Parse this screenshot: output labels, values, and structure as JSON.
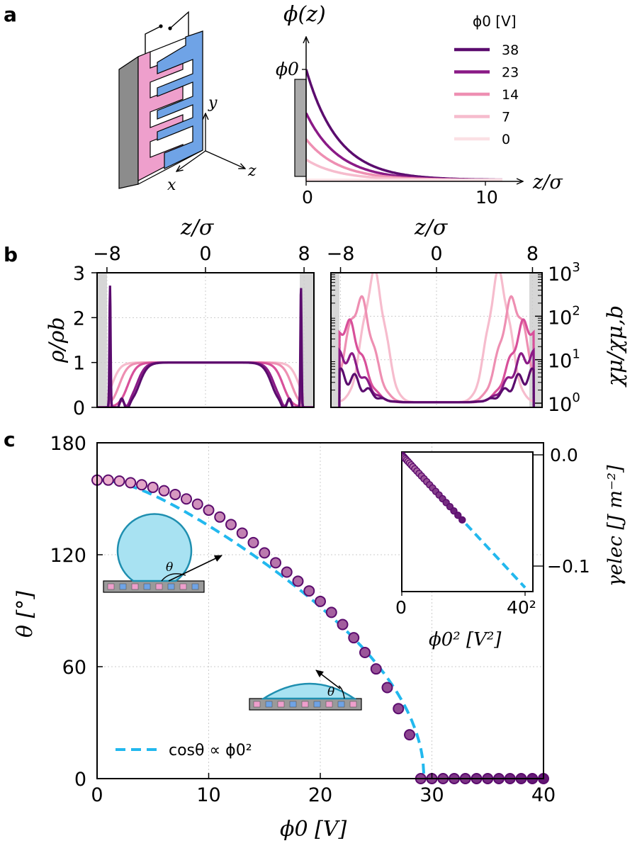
{
  "panel_labels": {
    "a": "a",
    "b": "b",
    "c": "c"
  },
  "colors": {
    "c38": "#5b0c6e",
    "c23": "#8a1a86",
    "c14": "#ee8fb2",
    "c7": "#f6bccd",
    "c0": "#fbe0e4",
    "fit": "#22b8ee",
    "wall": "#999999",
    "electrode_pink": "#ee9fcc",
    "electrode_blue": "#6fa3e6",
    "droplet": "#a8e2f2",
    "droplet_edge": "#1f8fb0"
  },
  "panel_a": {
    "axes_labels": {
      "x": "x",
      "y": "y",
      "z": "z"
    },
    "chart_data": {
      "type": "line",
      "title": "",
      "ylabel": "ϕ(z)",
      "xlabel": "z/σ",
      "yticklabel": "ϕ0",
      "xticks": [
        0,
        10
      ],
      "xlim": [
        -0.8,
        11.2
      ],
      "legend_title": "ϕ0 [V]",
      "legend_position": "top-right",
      "series": [
        {
          "name": "38",
          "phi0": 38,
          "color": "#5b0c6e"
        },
        {
          "name": "23",
          "phi0": 23,
          "color": "#8a1a86"
        },
        {
          "name": "14",
          "phi0": 14,
          "color": "#ee8fb2"
        },
        {
          "name": "7",
          "phi0": 7,
          "color": "#f6bccd"
        },
        {
          "name": "0",
          "phi0": 0,
          "color": "#fbe0e4"
        }
      ],
      "decay_length": 1.8
    }
  },
  "panel_b_left": {
    "chart_data": {
      "type": "line",
      "xlabel": "z/σ",
      "ylabel": "ρ/ρb",
      "xticks": [
        -8,
        0,
        8
      ],
      "yticks": [
        0,
        1,
        2,
        3
      ],
      "xlim": [
        -8.8,
        8.8
      ],
      "ylim": [
        0,
        3
      ],
      "series": [
        {
          "name": "38",
          "width": 5.4,
          "peak": 2.7,
          "color": "#5b0c6e"
        },
        {
          "name": "23",
          "width": 5.6,
          "peak": 0.9,
          "color": "#8a1a86"
        },
        {
          "name": "14",
          "width": 6.3,
          "peak": 0.0,
          "color": "#d8509a"
        },
        {
          "name": "7",
          "width": 7.0,
          "peak": 0.0,
          "color": "#ee8fb2"
        },
        {
          "name": "0",
          "width": 7.6,
          "peak": 0.0,
          "color": "#f6bccd"
        }
      ]
    }
  },
  "panel_b_right": {
    "chart_data": {
      "type": "line",
      "xlabel": "z/σ",
      "ylabel": "χμ/χμ,b",
      "xticks": [
        -8,
        0,
        8
      ],
      "yticklabels": [
        "10^0",
        "10^1",
        "10^2",
        "10^3"
      ],
      "yscale": "log",
      "xlim": [
        -8.8,
        8.8
      ],
      "ylim": [
        0.8,
        1000
      ],
      "series": [
        {
          "name": "38",
          "peak_pos": 7.8,
          "peak_val": 4,
          "color": "#5b0c6e"
        },
        {
          "name": "23",
          "peak_pos": 7.7,
          "peak_val": 12,
          "color": "#8a1a86"
        },
        {
          "name": "14",
          "peak_pos": 7.5,
          "peak_val": 60,
          "color": "#d8509a"
        },
        {
          "name": "7",
          "peak_pos": 6.4,
          "peak_val": 200,
          "color": "#ee8fb2"
        },
        {
          "name": "0",
          "peak_pos": 5.2,
          "peak_val": 800,
          "color": "#f6bccd"
        }
      ]
    }
  },
  "panel_c": {
    "chart_data": {
      "type": "scatter",
      "xlabel": "ϕ0 [V]",
      "ylabel": "θ [°]",
      "xticks": [
        0,
        10,
        20,
        30,
        40
      ],
      "yticks": [
        0,
        60,
        120,
        180
      ],
      "xlim": [
        0,
        40
      ],
      "ylim": [
        0,
        180
      ],
      "grid": true,
      "points": {
        "x": [
          0,
          1,
          2,
          3,
          4,
          5,
          6,
          7,
          8,
          9,
          10,
          11,
          12,
          13,
          14,
          15,
          16,
          17,
          18,
          19,
          20,
          21,
          22,
          23,
          24,
          25,
          26,
          27,
          28,
          29,
          30,
          31,
          32,
          33,
          34,
          35,
          36,
          37,
          38,
          39,
          40
        ],
        "y": [
          160,
          160,
          159.5,
          158.6,
          157.5,
          156.1,
          154.3,
          152.3,
          149.9,
          147.1,
          143.9,
          140.2,
          136.2,
          131.6,
          126.5,
          121.0,
          115.7,
          110.7,
          105.8,
          100.6,
          95.0,
          89.1,
          82.6,
          75.5,
          67.6,
          58.8,
          48.8,
          37.5,
          23.5,
          0,
          0,
          0,
          0,
          0,
          0,
          0,
          0,
          0,
          0,
          0,
          0
        ]
      },
      "fit": {
        "label": "cosθ ∝ ϕ0²",
        "theta0": 160,
        "phi_wet": 29.3
      },
      "legend_position": "bottom-left",
      "right_ylabel": "γelec [J m⁻²]",
      "right_yticks": [
        "0.0",
        "−0.1"
      ],
      "theta_label": "θ",
      "inset": {
        "type": "scatter",
        "xlabel": "ϕ0² [V²]",
        "xticks": [
          "0",
          "40²"
        ],
        "points_x": [
          0,
          1,
          2,
          3,
          4,
          5,
          6,
          7,
          8,
          9,
          10,
          11,
          12,
          13,
          14,
          15,
          16,
          17,
          18,
          19,
          20,
          21,
          22,
          23,
          24,
          25,
          26,
          27,
          28
        ],
        "slope_per_V2": -7.46e-05
      }
    }
  }
}
